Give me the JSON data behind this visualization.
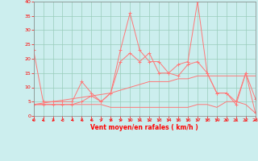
{
  "x": [
    0,
    1,
    2,
    3,
    4,
    5,
    6,
    7,
    8,
    9,
    10,
    11,
    12,
    13,
    14,
    15,
    16,
    17,
    18,
    19,
    20,
    21,
    22,
    23
  ],
  "wind_gust": [
    23,
    5,
    5,
    5,
    5,
    12,
    8,
    5,
    8,
    23,
    36,
    23,
    19,
    19,
    15,
    18,
    19,
    40,
    15,
    8,
    8,
    5,
    15,
    1
  ],
  "wind_avg": [
    4,
    4,
    4,
    4,
    4,
    5,
    7,
    5,
    8,
    19,
    22,
    19,
    22,
    15,
    15,
    14,
    18,
    19,
    15,
    8,
    8,
    4,
    15,
    6
  ],
  "wind_min": [
    4,
    4,
    4,
    4,
    4,
    4,
    4,
    4,
    3,
    3,
    3,
    3,
    3,
    3,
    3,
    3,
    3,
    4,
    4,
    3,
    5,
    5,
    4,
    1
  ],
  "trend": [
    4,
    4.5,
    5,
    5.5,
    6,
    6.5,
    7,
    7.5,
    8,
    9,
    10,
    11,
    12,
    12,
    12,
    13,
    13,
    14,
    14,
    14,
    14,
    14,
    14,
    14
  ],
  "line_color": "#FF7777",
  "bg_color": "#CCEEEE",
  "grid_color": "#99CCBB",
  "xlabel": "Vent moyen/en rafales ( km/h )",
  "ylim": [
    0,
    40
  ],
  "xlim": [
    0,
    23
  ],
  "yticks": [
    0,
    5,
    10,
    15,
    20,
    25,
    30,
    35,
    40
  ],
  "xticks": [
    0,
    1,
    2,
    3,
    4,
    5,
    6,
    7,
    8,
    9,
    10,
    11,
    12,
    13,
    14,
    15,
    16,
    17,
    18,
    19,
    20,
    21,
    22,
    23
  ],
  "arrow_angles": [
    225,
    225,
    210,
    270,
    225,
    225,
    225,
    45,
    45,
    45,
    45,
    45,
    45,
    45,
    45,
    45,
    45,
    45,
    45,
    45,
    45,
    45,
    45,
    225
  ]
}
